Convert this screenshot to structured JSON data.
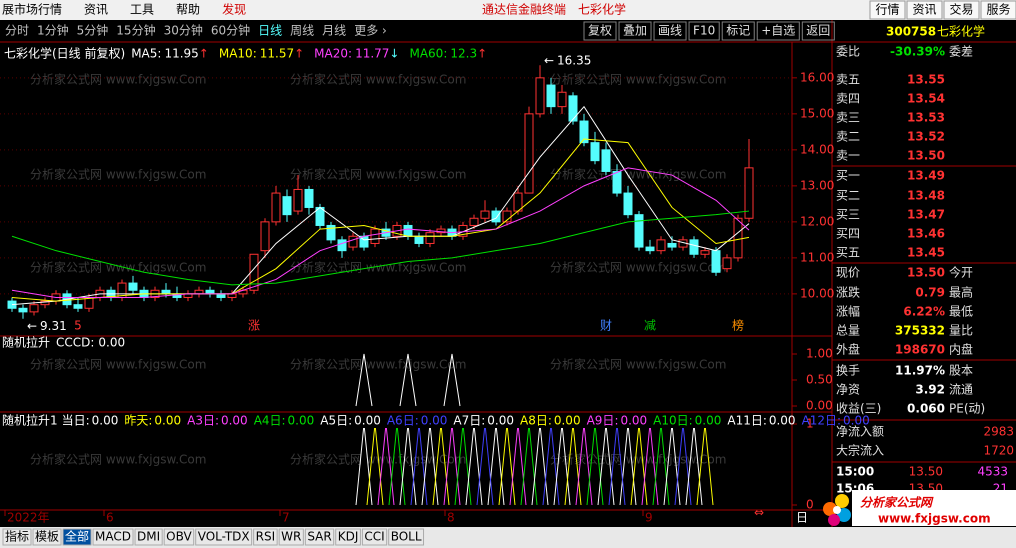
{
  "top_menu": {
    "items": [
      {
        "label": "展市场行情",
        "color": "#000"
      },
      {
        "label": "资讯",
        "color": "#000"
      },
      {
        "label": "工具",
        "color": "#000"
      },
      {
        "label": "帮助",
        "color": "#000"
      },
      {
        "label": "发现",
        "color": "#d00000"
      }
    ],
    "center": [
      "通达信金融终端",
      "七彩化学"
    ],
    "right_buttons": [
      "行情",
      "资讯",
      "交易",
      "服务"
    ]
  },
  "period_tabs": {
    "items": [
      "分时",
      "1分钟",
      "5分钟",
      "15分钟",
      "30分钟",
      "60分钟",
      "日线",
      "周线",
      "月线",
      "更多 ›"
    ],
    "active": "日线"
  },
  "tool_buttons": [
    "复权",
    "叠加",
    "画线",
    "F10",
    "标记",
    "+自选",
    "返回"
  ],
  "watermark": "分析家公式网 www.fxjgsw.Com",
  "chart_data": {
    "type": "candlestick",
    "title": "七彩化学(日线 前复权)",
    "ylim": [
      8.83,
      16.44
    ],
    "grid": true,
    "yticks": [
      {
        "value": 10,
        "label": "10.00"
      },
      {
        "value": 11,
        "label": "11.00"
      },
      {
        "value": 12,
        "label": "12.00"
      },
      {
        "value": 13,
        "label": "13.00"
      },
      {
        "value": 14,
        "label": "14.00"
      },
      {
        "value": 15,
        "label": "15.00"
      },
      {
        "value": 16,
        "label": "16.00"
      }
    ],
    "up_color": "#ff3232",
    "down_color": "#54fcfc",
    "ohlc": [
      [
        9.8,
        9.9,
        9.5,
        9.6
      ],
      [
        9.6,
        9.7,
        9.31,
        9.5
      ],
      [
        9.5,
        9.8,
        9.4,
        9.7
      ],
      [
        9.7,
        9.9,
        9.6,
        9.8
      ],
      [
        9.8,
        10.1,
        9.7,
        10.0
      ],
      [
        10.0,
        10.1,
        9.6,
        9.7
      ],
      [
        9.7,
        9.9,
        9.5,
        9.6
      ],
      [
        9.6,
        10.0,
        9.5,
        9.9
      ],
      [
        9.9,
        10.2,
        9.8,
        10.1
      ],
      [
        10.1,
        10.2,
        9.8,
        9.9
      ],
      [
        9.9,
        10.4,
        9.8,
        10.3
      ],
      [
        10.3,
        10.5,
        10.0,
        10.1
      ],
      [
        10.1,
        10.2,
        9.8,
        9.9
      ],
      [
        9.9,
        10.2,
        9.8,
        10.1
      ],
      [
        10.1,
        10.3,
        9.9,
        10.0
      ],
      [
        10.0,
        10.2,
        9.8,
        9.9
      ],
      [
        9.9,
        10.1,
        9.8,
        10.0
      ],
      [
        10.0,
        10.2,
        9.9,
        10.1
      ],
      [
        10.1,
        10.2,
        9.9,
        10.0
      ],
      [
        10.0,
        10.1,
        9.8,
        9.9
      ],
      [
        9.9,
        10.1,
        9.8,
        10.0
      ],
      [
        10.0,
        10.2,
        9.9,
        10.1
      ],
      [
        10.1,
        11.1,
        10.0,
        11.1
      ],
      [
        11.2,
        12.1,
        11.0,
        12.0
      ],
      [
        12.0,
        13.0,
        11.9,
        12.8
      ],
      [
        12.7,
        12.9,
        12.0,
        12.2
      ],
      [
        12.3,
        13.3,
        12.2,
        12.9
      ],
      [
        12.9,
        13.0,
        12.2,
        12.4
      ],
      [
        12.4,
        12.5,
        11.8,
        11.9
      ],
      [
        11.9,
        12.0,
        11.4,
        11.5
      ],
      [
        11.5,
        11.6,
        11.0,
        11.2
      ],
      [
        11.3,
        11.7,
        11.2,
        11.6
      ],
      [
        11.6,
        11.7,
        11.2,
        11.3
      ],
      [
        11.4,
        11.9,
        11.3,
        11.8
      ],
      [
        11.8,
        12.0,
        11.5,
        11.6
      ],
      [
        11.6,
        12.0,
        11.5,
        11.9
      ],
      [
        11.9,
        12.0,
        11.5,
        11.6
      ],
      [
        11.6,
        11.7,
        11.3,
        11.4
      ],
      [
        11.4,
        11.8,
        11.3,
        11.7
      ],
      [
        11.7,
        11.9,
        11.6,
        11.8
      ],
      [
        11.8,
        11.9,
        11.5,
        11.6
      ],
      [
        11.6,
        12.0,
        11.5,
        11.9
      ],
      [
        11.9,
        12.2,
        11.8,
        12.1
      ],
      [
        12.1,
        12.6,
        12.0,
        12.3
      ],
      [
        12.3,
        12.4,
        11.9,
        12.0
      ],
      [
        12.0,
        12.4,
        11.9,
        12.3
      ],
      [
        12.3,
        13.0,
        12.2,
        12.8
      ],
      [
        12.8,
        15.2,
        12.8,
        15.0
      ],
      [
        15.0,
        16.35,
        14.9,
        16.0
      ],
      [
        15.8,
        16.0,
        15.0,
        15.2
      ],
      [
        15.2,
        15.8,
        15.0,
        15.6
      ],
      [
        15.5,
        15.6,
        14.7,
        14.8
      ],
      [
        14.8,
        15.0,
        14.1,
        14.2
      ],
      [
        14.2,
        14.5,
        13.6,
        13.7
      ],
      [
        14.0,
        14.2,
        13.3,
        13.4
      ],
      [
        13.4,
        13.6,
        12.7,
        12.8
      ],
      [
        12.8,
        13.0,
        12.1,
        12.2
      ],
      [
        12.2,
        12.3,
        11.2,
        11.3
      ],
      [
        11.3,
        11.5,
        11.1,
        11.2
      ],
      [
        11.2,
        11.6,
        11.1,
        11.5
      ],
      [
        11.4,
        11.6,
        11.2,
        11.3
      ],
      [
        11.3,
        11.6,
        11.2,
        11.5
      ],
      [
        11.5,
        11.6,
        11.0,
        11.1
      ],
      [
        11.1,
        11.3,
        11.0,
        11.2
      ],
      [
        11.2,
        11.3,
        10.5,
        10.6
      ],
      [
        10.7,
        11.1,
        10.6,
        11.0
      ],
      [
        11.0,
        12.2,
        10.9,
        12.1
      ],
      [
        12.1,
        14.3,
        12.0,
        13.5
      ]
    ],
    "ma_index": [
      0,
      4,
      8,
      12,
      16,
      20,
      24,
      28,
      32,
      36,
      40,
      44,
      48,
      52,
      56,
      60,
      64,
      67
    ],
    "series": [
      {
        "name": "MA5",
        "value": 11.95,
        "trend": "↑",
        "trend_color": "#ff3232",
        "color": "#ffffff",
        "values": [
          9.7,
          9.8,
          10.0,
          10.0,
          10.0,
          10.0,
          11.4,
          12.4,
          11.5,
          11.6,
          11.6,
          12.1,
          13.8,
          15.2,
          13.3,
          11.5,
          11.2,
          11.95
        ]
      },
      {
        "name": "MA10",
        "value": 11.57,
        "trend": "↑",
        "trend_color": "#ff3232",
        "color": "#ffff00",
        "values": [
          9.9,
          9.8,
          9.9,
          10.0,
          10.0,
          10.0,
          10.7,
          11.8,
          11.9,
          11.6,
          11.6,
          11.8,
          12.8,
          14.3,
          14.2,
          12.4,
          11.4,
          11.57
        ]
      },
      {
        "name": "MA20",
        "value": 11.77,
        "trend": "↓",
        "trend_color": "#54fcfc",
        "color": "#ff40ff",
        "values": [
          10.1,
          9.9,
          9.9,
          9.9,
          10.0,
          10.0,
          10.4,
          11.2,
          11.6,
          11.8,
          11.7,
          11.8,
          12.3,
          13.0,
          13.5,
          13.3,
          12.6,
          11.77
        ]
      },
      {
        "name": "MA60",
        "value": 12.3,
        "trend": "↑",
        "trend_color": "#ff3232",
        "color": "#00e000",
        "values": [
          11.6,
          11.2,
          10.9,
          10.6,
          10.4,
          10.25,
          10.3,
          10.5,
          10.7,
          10.9,
          11.0,
          11.2,
          11.4,
          11.7,
          12.0,
          12.1,
          12.2,
          12.3
        ]
      }
    ],
    "annotations": [
      {
        "index": 48,
        "value": 16.35,
        "label": "16.35"
      },
      {
        "index": 1,
        "value": 9.31,
        "label": "9.31"
      }
    ],
    "events": [
      {
        "index": 6,
        "label": "5",
        "color": "#ff3232"
      },
      {
        "index": 22,
        "label": "涨",
        "color": "#ff3232"
      },
      {
        "index": 54,
        "label": "财",
        "color": "#4080ff"
      },
      {
        "index": 58,
        "label": "减",
        "color": "#00c000"
      },
      {
        "index": 66,
        "label": "榜",
        "color": "#ff9000"
      }
    ],
    "date_labels": [
      {
        "index": 0,
        "label": "2022年"
      },
      {
        "index": 9,
        "label": "6"
      },
      {
        "index": 25,
        "label": "7"
      },
      {
        "index": 40,
        "label": "8"
      },
      {
        "index": 58,
        "label": "9"
      }
    ],
    "period_label": "日"
  },
  "indicator_1": {
    "title": "随机拉升",
    "name": "CCCD",
    "value": "0.00",
    "color": "#ffffff",
    "ylim": [
      0,
      1
    ],
    "yticks": [
      {
        "value": 0,
        "label": "0.00"
      },
      {
        "value": 0.5,
        "label": "0.50"
      },
      {
        "value": 1,
        "label": "1.00"
      }
    ],
    "spike_value": 1,
    "spikes": [
      32,
      36,
      40
    ]
  },
  "indicator_2": {
    "title": "随机拉升1",
    "ylim": [
      0,
      1
    ],
    "yticks": [
      0,
      1
    ],
    "spike_value": 1,
    "series": [
      {
        "name": "当日",
        "value": "0.00",
        "color": "#ffffff",
        "spikes": [
          32,
          44,
          56
        ]
      },
      {
        "name": "昨天",
        "value": "0.00",
        "color": "#ffff00",
        "spikes": [
          33,
          45,
          57
        ]
      },
      {
        "name": "A3日",
        "value": "0.00",
        "color": "#ff40ff",
        "spikes": [
          34,
          46,
          58
        ]
      },
      {
        "name": "A4日",
        "value": "0.00",
        "color": "#00e000",
        "spikes": [
          35,
          47,
          59
        ]
      },
      {
        "name": "A5日",
        "value": "0.00",
        "color": "#ffffff",
        "spikes": [
          36,
          48,
          60
        ]
      },
      {
        "name": "A6日",
        "value": "0.00",
        "color": "#4040ff",
        "spikes": [
          37,
          49,
          61
        ]
      },
      {
        "name": "A7日",
        "value": "0.00",
        "color": "#ffffff",
        "spikes": [
          38,
          50,
          62
        ]
      },
      {
        "name": "A8日",
        "value": "0.00",
        "color": "#ffff00",
        "spikes": [
          39,
          51,
          63
        ]
      },
      {
        "name": "A9日",
        "value": "0.00",
        "color": "#ff40ff",
        "spikes": [
          40,
          52
        ]
      },
      {
        "name": "A10日",
        "value": "0.00",
        "color": "#00e000",
        "spikes": [
          41,
          53
        ]
      },
      {
        "name": "A11日",
        "value": "0.00",
        "color": "#ffffff",
        "spikes": [
          42,
          54
        ]
      },
      {
        "name": "A12日",
        "value": "0.00",
        "color": "#4040ff",
        "spikes": [
          43,
          55
        ]
      }
    ]
  },
  "quote_panel": {
    "code": "300758",
    "name": "七彩化学",
    "rows": [
      {
        "label": "委比",
        "value": "-30.39%",
        "color": "#00e000",
        "label2": "委差"
      },
      {
        "label": "卖五",
        "value": "13.55",
        "color": "#ff3232"
      },
      {
        "label": "卖四",
        "value": "13.54",
        "color": "#ff3232"
      },
      {
        "label": "卖三",
        "value": "13.53",
        "color": "#ff3232"
      },
      {
        "label": "卖二",
        "value": "13.52",
        "color": "#ff3232"
      },
      {
        "label": "卖一",
        "value": "13.50",
        "color": "#ff3232"
      },
      {
        "label": "买一",
        "value": "13.49",
        "color": "#ff3232"
      },
      {
        "label": "买二",
        "value": "13.48",
        "color": "#ff3232"
      },
      {
        "label": "买三",
        "value": "13.47",
        "color": "#ff3232"
      },
      {
        "label": "买四",
        "value": "13.46",
        "color": "#ff3232"
      },
      {
        "label": "买五",
        "value": "13.45",
        "color": "#ff3232"
      },
      {
        "label": "现价",
        "value": "13.50",
        "color": "#ff3232",
        "label2": "今开"
      },
      {
        "label": "涨跌",
        "value": "0.79",
        "color": "#ff3232",
        "label2": "最高"
      },
      {
        "label": "涨幅",
        "value": "6.22%",
        "color": "#ff3232",
        "label2": "最低"
      },
      {
        "label": "总量",
        "value": "375332",
        "color": "#ffff00",
        "label2": "量比"
      },
      {
        "label": "外盘",
        "value": "198670",
        "color": "#ff3232",
        "label2": "内盘"
      },
      {
        "label": "换手",
        "value": "11.97%",
        "color": "#ffffff",
        "label2": "股本"
      },
      {
        "label": "净资",
        "value": "3.92",
        "color": "#ffffff",
        "label2": "流通"
      },
      {
        "label": "收益(三)",
        "value": "0.060",
        "color": "#ffffff",
        "label2": "PE(动)"
      }
    ],
    "flows": [
      {
        "label": "净流入额",
        "value": "2983"
      },
      {
        "label": "大宗流入",
        "value": "1720"
      }
    ],
    "ticks": [
      {
        "time": "15:00",
        "price": "13.50",
        "volume": "4533"
      },
      {
        "time": "15:06",
        "price": "13.50",
        "volume": "21"
      }
    ]
  },
  "logo": {
    "name": "分析家公式网",
    "url": "www.fxjgsw.com"
  },
  "bottom_tabs": {
    "items": [
      "指标",
      "模板",
      "全部",
      "MACD",
      "DMI",
      "OBV",
      "VOL-TDX",
      "RSI",
      "WR",
      "SAR",
      "KDJ",
      "CCI",
      "BOLL"
    ],
    "active": "全部"
  }
}
